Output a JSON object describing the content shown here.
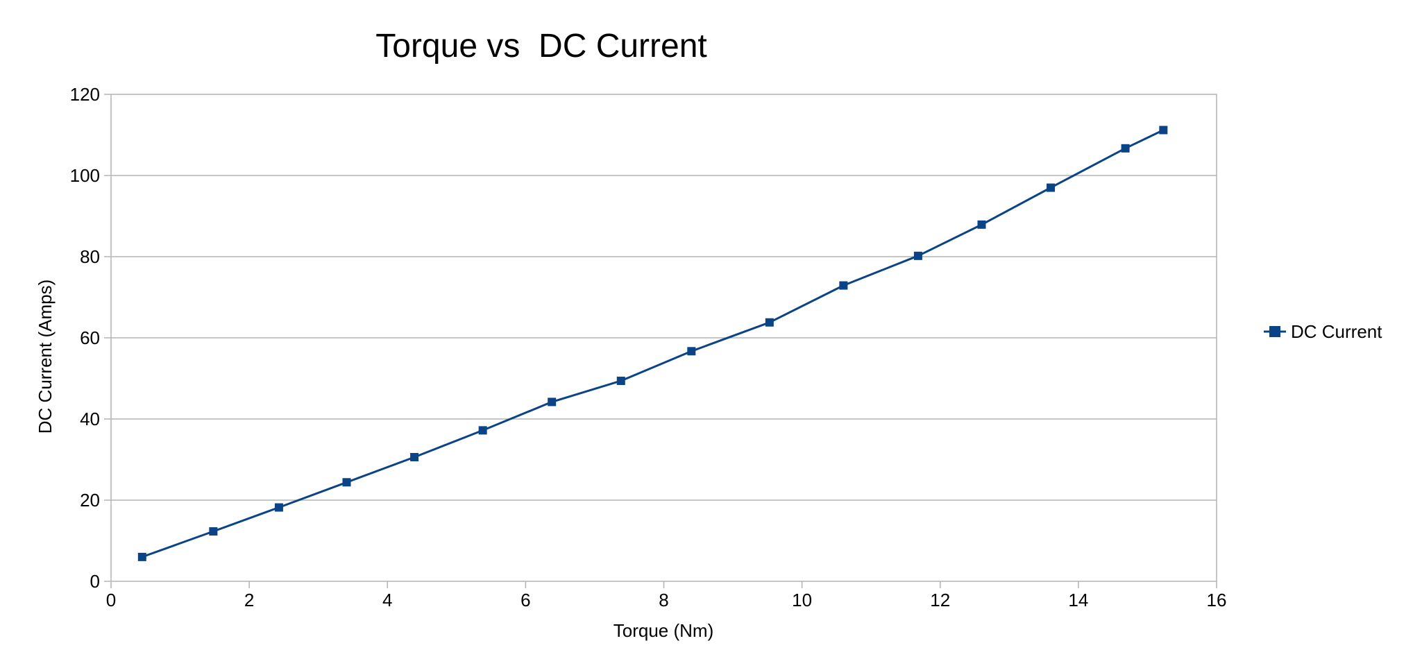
{
  "chart_data": {
    "type": "line",
    "title": "Torque vs  DC Current",
    "xlabel": "Torque (Nm)",
    "ylabel": "DC Current (Amps)",
    "xlim": [
      0,
      16
    ],
    "ylim": [
      0,
      120
    ],
    "x_ticks": [
      0,
      2,
      4,
      6,
      8,
      10,
      12,
      14,
      16
    ],
    "y_ticks": [
      0,
      20,
      40,
      60,
      80,
      100,
      120
    ],
    "grid": "horizontal",
    "legend_position": "right",
    "series": [
      {
        "name": "DC Current",
        "color": "#0a4386",
        "marker": "square",
        "points": [
          {
            "x": 0.45,
            "y": 6.0
          },
          {
            "x": 1.48,
            "y": 12.3
          },
          {
            "x": 2.43,
            "y": 18.2
          },
          {
            "x": 3.41,
            "y": 24.4
          },
          {
            "x": 4.39,
            "y": 30.6
          },
          {
            "x": 5.38,
            "y": 37.2
          },
          {
            "x": 6.38,
            "y": 44.2
          },
          {
            "x": 7.38,
            "y": 49.4
          },
          {
            "x": 8.4,
            "y": 56.7
          },
          {
            "x": 9.53,
            "y": 63.8
          },
          {
            "x": 10.6,
            "y": 72.9
          },
          {
            "x": 11.68,
            "y": 80.2
          },
          {
            "x": 12.6,
            "y": 87.9
          },
          {
            "x": 13.6,
            "y": 97.0
          },
          {
            "x": 14.68,
            "y": 106.7
          },
          {
            "x": 15.23,
            "y": 111.2
          }
        ]
      }
    ]
  }
}
